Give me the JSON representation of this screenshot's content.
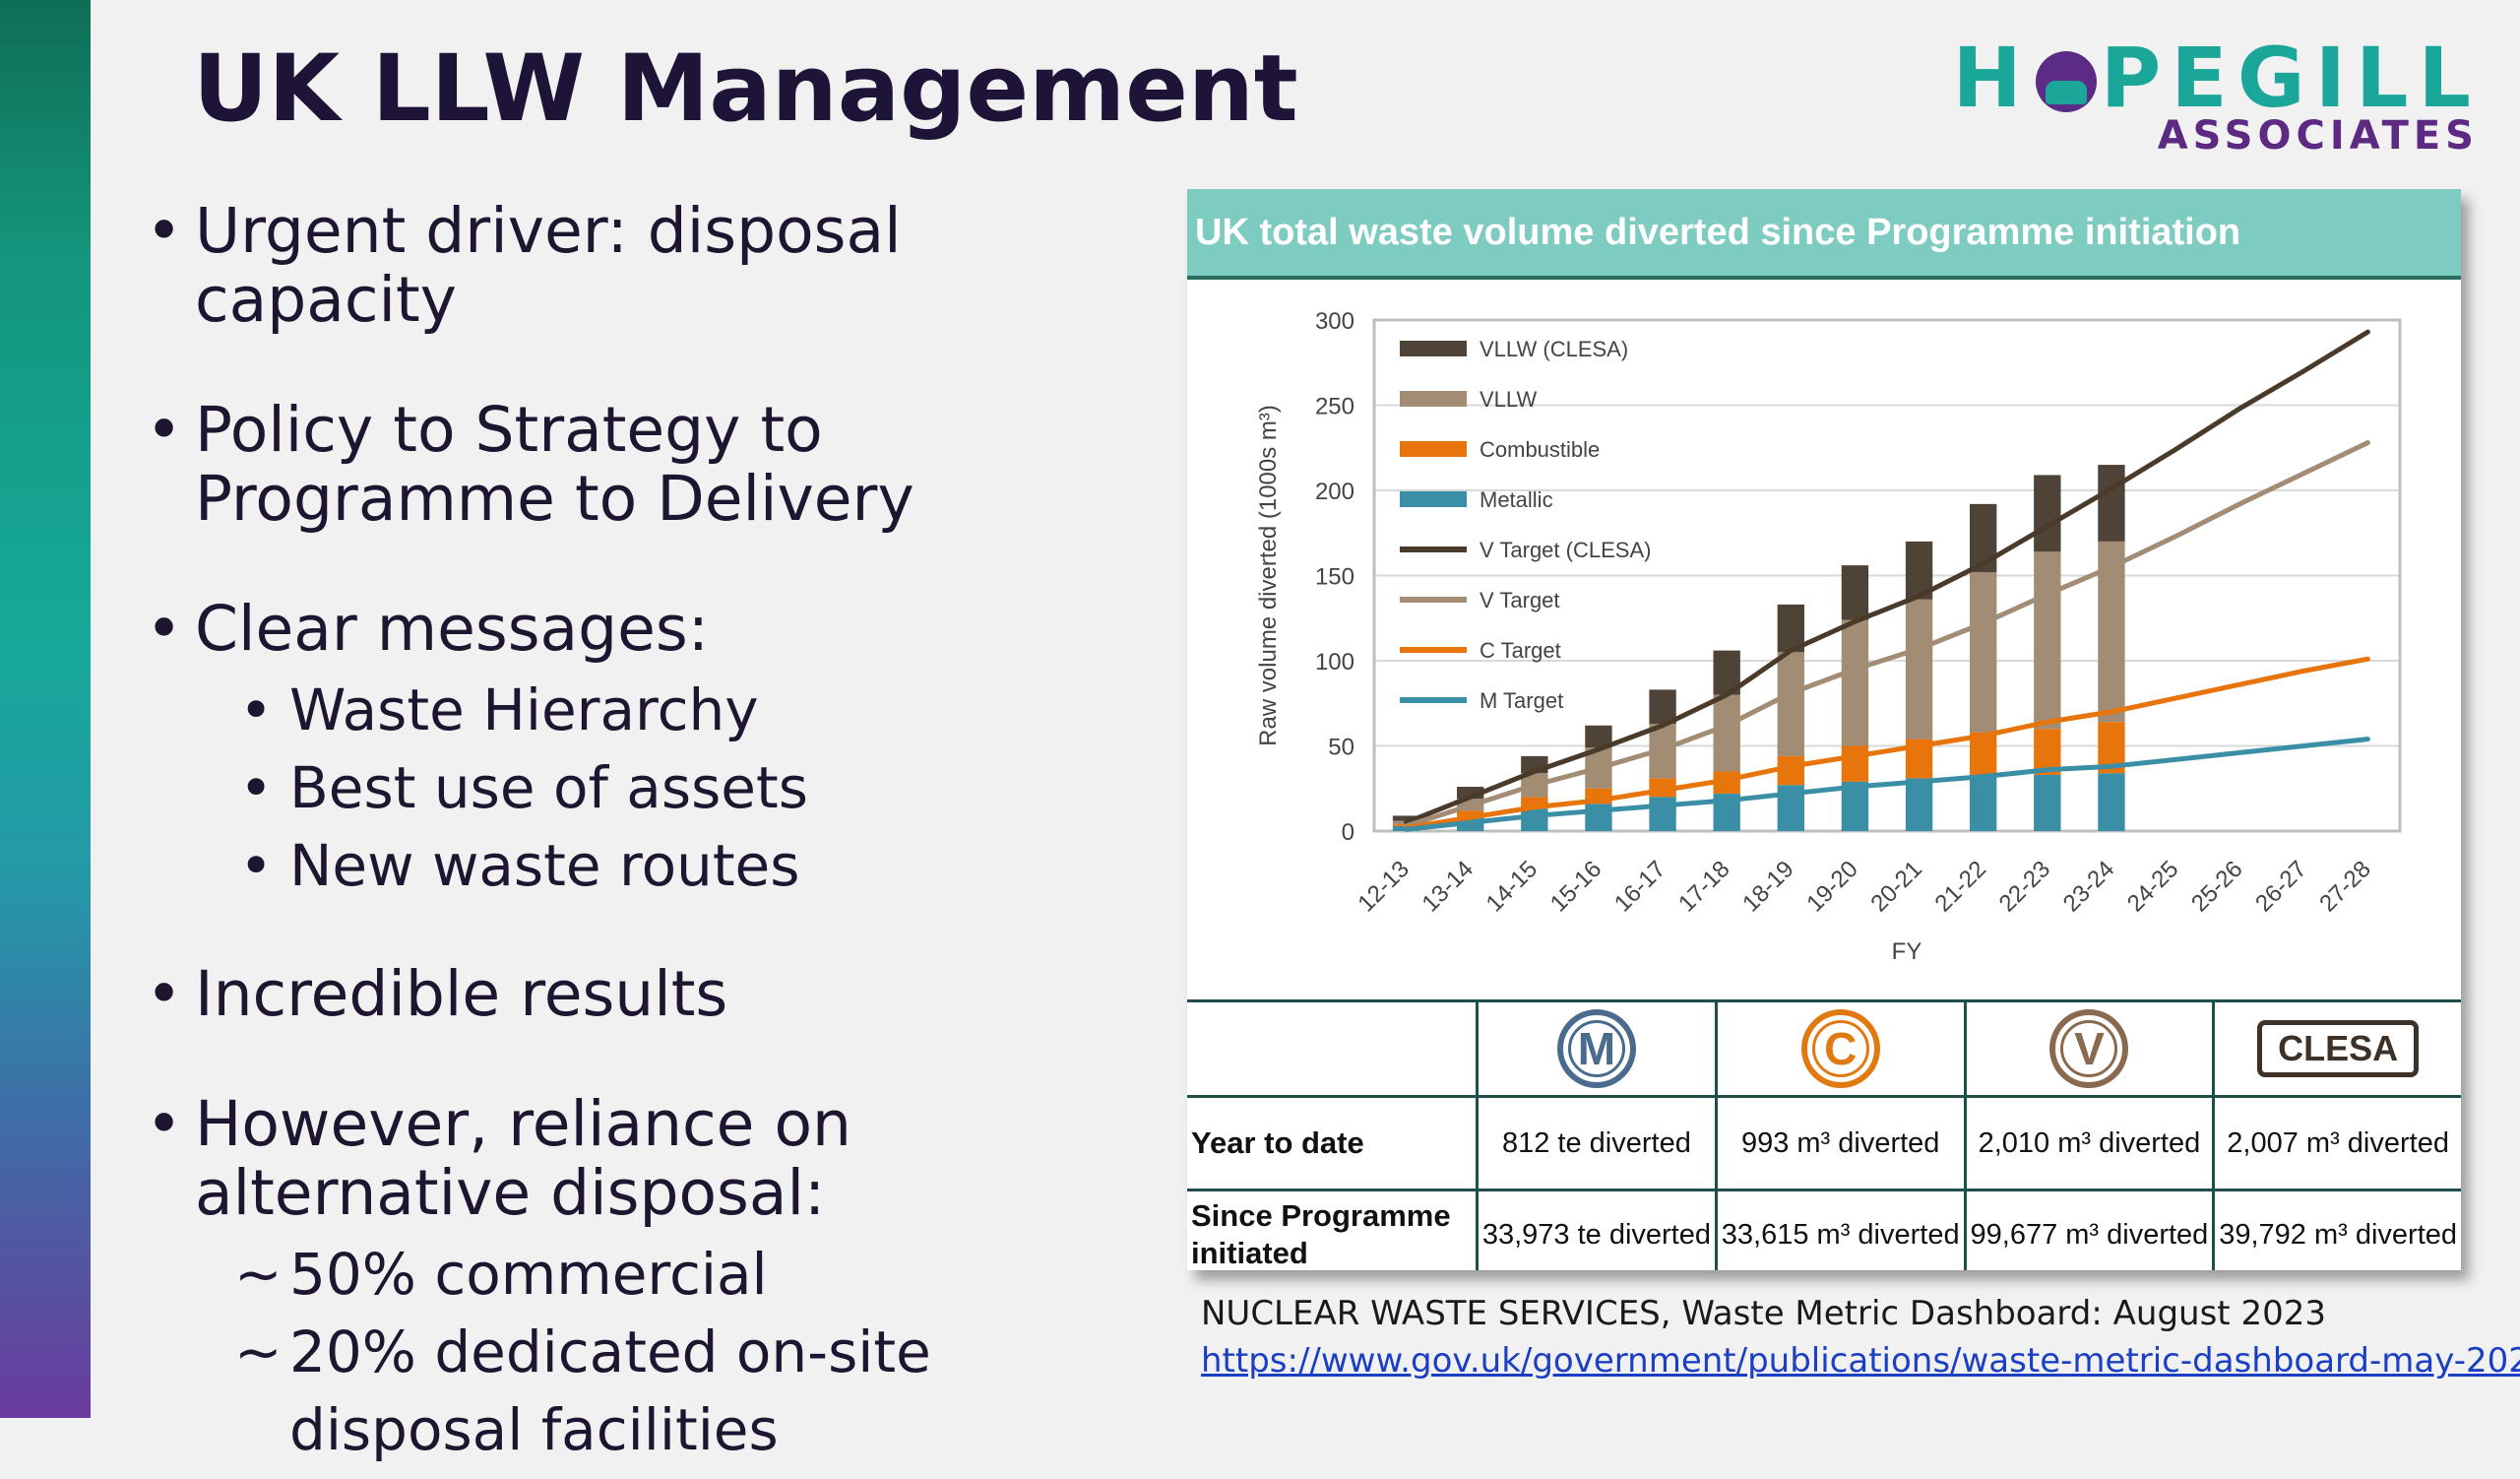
{
  "slide": {
    "title": "UK LLW Management",
    "logo": {
      "brand_left": "H",
      "brand_right": "PEGILL",
      "subtitle": "ASSOCIATES"
    },
    "bullets": [
      {
        "text": "Urgent driver: disposal capacity"
      },
      {
        "text": "Policy to Strategy to Programme to Delivery"
      },
      {
        "text": "Clear messages:",
        "sub": [
          "Waste Hierarchy",
          "Best use of assets",
          "New waste routes"
        ]
      },
      {
        "text": "Incredible results"
      },
      {
        "text": "However, reliance on alternative disposal:",
        "sub": [
          "50% commercial",
          "20% dedicated on-site disposal facilities"
        ]
      }
    ],
    "source": {
      "text": "NUCLEAR WASTE SERVICES, Waste Metric Dashboard: August 2023",
      "link": "https://www.gov.uk/government/publications/waste-metric-dashboard-may-2022"
    }
  },
  "panel": {
    "header": "UK total waste volume diverted since Programme initiation",
    "table": {
      "icons": [
        {
          "letter": "M",
          "color": "#4a6a8e"
        },
        {
          "letter": "C",
          "color": "#e07a10"
        },
        {
          "letter": "V",
          "color": "#8a6a4e"
        },
        {
          "letter": "CLESA",
          "color": "#3d3128"
        }
      ],
      "rows": [
        {
          "label": "Year to date",
          "cells": [
            "812 te diverted",
            "993 m³ diverted",
            "2,010 m³ diverted",
            "2,007 m³ diverted"
          ]
        },
        {
          "label": "Since Programme initiated",
          "cells": [
            "33,973 te diverted",
            "33,615 m³ diverted",
            "99,677 m³ diverted",
            "39,792 m³ diverted"
          ]
        }
      ]
    }
  },
  "chart_data": {
    "type": "bar",
    "stacked": true,
    "title": "",
    "xlabel": "FY",
    "ylabel": "Raw volume diverted (1000s m³)",
    "ylim": [
      0,
      300
    ],
    "yticks": [
      0,
      50,
      100,
      150,
      200,
      250,
      300
    ],
    "categories": [
      "12-13",
      "13-14",
      "14-15",
      "15-16",
      "16-17",
      "17-18",
      "18-19",
      "19-20",
      "20-21",
      "21-22",
      "22-23",
      "23-24",
      "24-25",
      "25-26",
      "26-27",
      "27-28"
    ],
    "legend_position": "top-left",
    "grid": true,
    "bar_series": [
      {
        "name": "Metallic",
        "color": "#3a8fa6",
        "values": [
          3,
          8,
          13,
          16,
          20,
          22,
          27,
          29,
          31,
          33,
          33,
          34
        ]
      },
      {
        "name": "Combustible",
        "color": "#e8740c",
        "values": [
          1,
          4,
          7,
          9,
          11,
          13,
          17,
          21,
          23,
          25,
          27,
          30
        ]
      },
      {
        "name": "VLLW",
        "color": "#a28c74",
        "values": [
          2,
          7,
          14,
          24,
          32,
          45,
          61,
          74,
          82,
          94,
          104,
          106
        ]
      },
      {
        "name": "VLLW (CLESA)",
        "color": "#4f4337",
        "values": [
          3,
          7,
          10,
          13,
          20,
          26,
          28,
          32,
          34,
          40,
          45,
          45
        ]
      }
    ],
    "line_series": [
      {
        "name": "V Target (CLESA)",
        "color": "#4a3a2a",
        "values": [
          5,
          20,
          35,
          48,
          62,
          80,
          106,
          123,
          138,
          157,
          179,
          201,
          224,
          248,
          270,
          293
        ]
      },
      {
        "name": "V Target",
        "color": "#a28c74",
        "values": [
          3,
          15,
          27,
          37,
          48,
          62,
          81,
          95,
          107,
          122,
          139,
          155,
          173,
          192,
          210,
          228
        ]
      },
      {
        "name": "C Target",
        "color": "#e8740c",
        "values": [
          2,
          8,
          14,
          18,
          24,
          30,
          38,
          44,
          50,
          56,
          64,
          70,
          78,
          86,
          94,
          101
        ]
      },
      {
        "name": "M Target",
        "color": "#3a8fa6",
        "values": [
          1,
          5,
          9,
          12,
          15,
          18,
          22,
          26,
          29,
          32,
          36,
          38,
          42,
          46,
          50,
          54
        ]
      }
    ],
    "legend": [
      "VLLW (CLESA)",
      "VLLW",
      "Combustible",
      "Metallic",
      "V Target (CLESA)",
      "V Target",
      "C Target",
      "M Target"
    ]
  }
}
